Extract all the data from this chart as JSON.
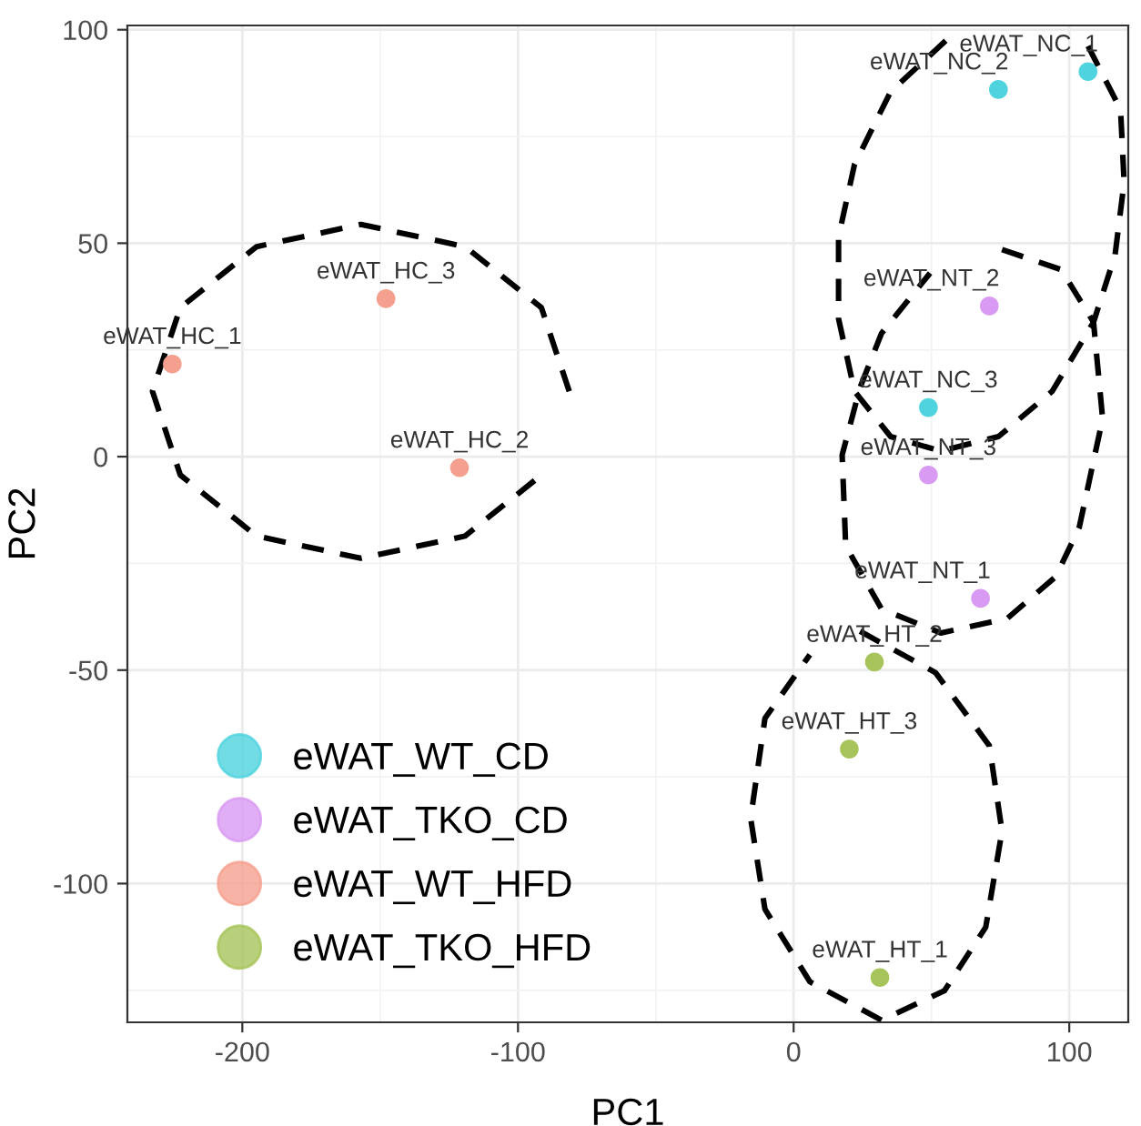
{
  "chart_data": {
    "type": "scatter",
    "xlabel": "PC1",
    "ylabel": "PC2",
    "xlim": [
      -241.7,
      121.4
    ],
    "ylim": [
      -132.5,
      101
    ],
    "xticks": [
      -200,
      -100,
      0,
      100
    ],
    "yticks": [
      -100,
      -50,
      0,
      50,
      100
    ],
    "grid": true,
    "legend": "bottom left",
    "marker": "circle",
    "series": [
      {
        "name": "eWAT_WT_CD",
        "color": "#4fd3df",
        "x": [
          106.8,
          74.3,
          48.9
        ],
        "values": [
          90.2,
          86.0,
          11.5
        ]
      },
      {
        "name": "eWAT_TKO_CD",
        "color": "#d89af2",
        "x": [
          71.0,
          48.9,
          67.8
        ],
        "values": [
          35.3,
          -4.3,
          -33.2
        ]
      },
      {
        "name": "eWAT_WT_HFD",
        "color": "#f5a08f",
        "x": [
          -225.4,
          -147.9,
          -121.2
        ],
        "values": [
          21.7,
          37.0,
          -2.6
        ]
      },
      {
        "name": "eWAT_TKO_HFD",
        "color": "#a6c45a",
        "x": [
          29.3,
          20.2,
          31.3
        ],
        "values": [
          -48.1,
          -68.5,
          -122.0
        ]
      },
      {
        "type": "line",
        "line_style": "dashed",
        "marker": "none",
        "color": "#000000",
        "x": [
          -81.4,
          -91.5,
          -119.2,
          -157,
          -194.8,
          -222.5,
          -232.6,
          -222.5,
          -194.8,
          -157,
          -119.2,
          -91.5
        ],
        "values": [
          15.3,
          34.9,
          49.2,
          54.4,
          49.2,
          34.9,
          15.3,
          -4.3,
          -18.6,
          -23.8,
          -18.6,
          -4.3
        ]
      },
      {
        "type": "line",
        "line_style": "dashed",
        "marker": "none",
        "color": "#000000",
        "x": [
          24.1,
          51.5,
          71.0,
          75.6,
          69.7,
          54.7,
          31.9,
          5.9,
          -10.4,
          -15.6,
          -10.4,
          5.9
        ],
        "values": [
          -40.9,
          -50.6,
          -67.7,
          -87.7,
          -110.2,
          -125.1,
          -132.0,
          -123.0,
          -106.0,
          -84.7,
          -61.3,
          -46.4
        ]
      },
      {
        "type": "line",
        "line_style": "dashed",
        "marker": "none",
        "color": "#000000",
        "x": [
          106.8,
          118.6,
          119.9,
          116.6,
          108.8,
          93.8,
          74.3,
          53.4,
          35.2,
          22.1,
          16.3,
          16.3,
          22.1,
          35.2,
          58.0
        ],
        "values": [
          96.2,
          81.3,
          64.3,
          47.2,
          31.5,
          15.3,
          4.7,
          1.3,
          4.7,
          15.3,
          32.3,
          51.5,
          68.5,
          85.5,
          99.1
        ]
      },
      {
        "type": "line",
        "line_style": "dashed",
        "marker": "none",
        "color": "#000000",
        "x": [
          75.6,
          97.1,
          108.8,
          112.1,
          103.6,
          95.1,
          77.5,
          53.4,
          31.9,
          18.9,
          17.6,
          24.1,
          31.9,
          49.5
        ],
        "values": [
          48.5,
          43.8,
          31.5,
          8.9,
          -16.6,
          -28.1,
          -37.9,
          -41.3,
          -35.7,
          -20.9,
          0.4,
          16.2,
          28.9,
          43.0
        ]
      }
    ],
    "annotations": [
      {
        "text": "eWAT_NC_1",
        "x": 106.8,
        "y": 90.2
      },
      {
        "text": "eWAT_NC_2",
        "x": 74.3,
        "y": 86.0
      },
      {
        "text": "eWAT_NC_3",
        "x": 48.9,
        "y": 11.5
      },
      {
        "text": "eWAT_NT_2",
        "x": 71.0,
        "y": 35.3
      },
      {
        "text": "eWAT_NT_3",
        "x": 48.9,
        "y": -4.3
      },
      {
        "text": "eWAT_NT_1",
        "x": 67.8,
        "y": -33.2
      },
      {
        "text": "eWAT_HC_1",
        "x": -225.4,
        "y": 21.7
      },
      {
        "text": "eWAT_HC_3",
        "x": -147.9,
        "y": 37.0
      },
      {
        "text": "eWAT_HC_2",
        "x": -121.2,
        "y": -2.6
      },
      {
        "text": "eWAT_HT_2",
        "x": 29.3,
        "y": -48.1
      },
      {
        "text": "eWAT_HT_3",
        "x": 20.2,
        "y": -68.5
      },
      {
        "text": "eWAT_HT_1",
        "x": 31.3,
        "y": -122.0
      }
    ]
  }
}
